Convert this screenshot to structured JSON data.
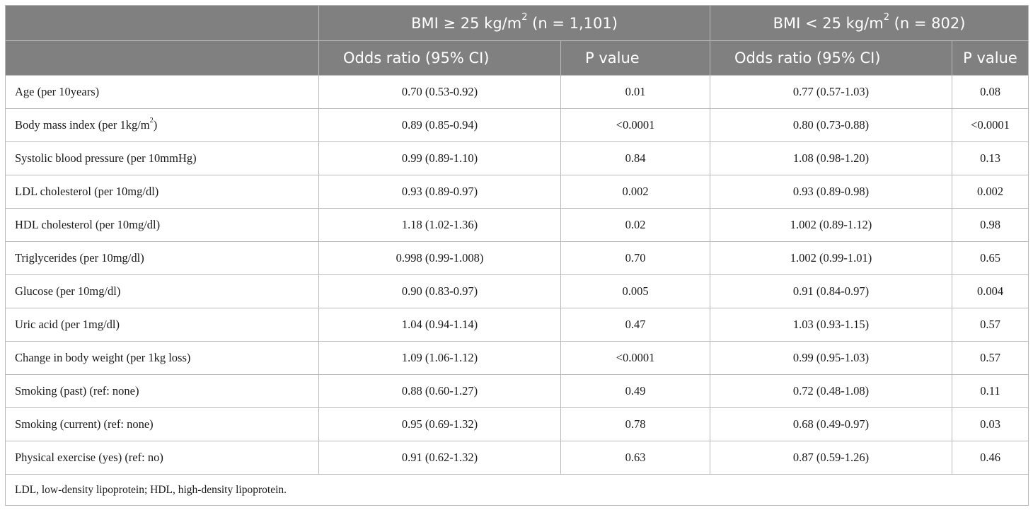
{
  "header": {
    "group1": {
      "prefix": "BMI ≥ 25 kg/m",
      "sup": "2",
      "suffix": " (n = 1,101)"
    },
    "group2": {
      "prefix": "BMI < 25 kg/m",
      "sup": "2",
      "suffix": " (n = 802)"
    },
    "col_or": "Odds ratio (95% CI)",
    "col_p": "P value"
  },
  "rows": [
    {
      "label": "Age (per 10years)",
      "or1": "0.70 (0.53-0.92)",
      "p1": "0.01",
      "or2": "0.77 (0.57-1.03)",
      "p2": "0.08"
    },
    {
      "label": "Body mass index (per 1kg/m",
      "label_sup": "2",
      "label_tail": ")",
      "or1": "0.89 (0.85-0.94)",
      "p1": "<0.0001",
      "or2": "0.80 (0.73-0.88)",
      "p2": "<0.0001"
    },
    {
      "label": "Systolic blood pressure (per 10mmHg)",
      "or1": "0.99 (0.89-1.10)",
      "p1": "0.84",
      "or2": "1.08 (0.98-1.20)",
      "p2": "0.13"
    },
    {
      "label": "LDL cholesterol (per 10mg/dl)",
      "or1": "0.93 (0.89-0.97)",
      "p1": "0.002",
      "or2": "0.93 (0.89-0.98)",
      "p2": "0.002"
    },
    {
      "label": "HDL cholesterol (per 10mg/dl)",
      "or1": "1.18 (1.02-1.36)",
      "p1": "0.02",
      "or2": "1.002 (0.89-1.12)",
      "p2": "0.98"
    },
    {
      "label": "Triglycerides (per 10mg/dl)",
      "or1": "0.998 (0.99-1.008)",
      "p1": "0.70",
      "or2": "1.002 (0.99-1.01)",
      "p2": "0.65"
    },
    {
      "label": "Glucose (per 10mg/dl)",
      "or1": "0.90 (0.83-0.97)",
      "p1": "0.005",
      "or2": "0.91 (0.84-0.97)",
      "p2": "0.004"
    },
    {
      "label": "Uric acid (per 1mg/dl)",
      "or1": "1.04 (0.94-1.14)",
      "p1": "0.47",
      "or2": "1.03 (0.93-1.15)",
      "p2": "0.57"
    },
    {
      "label": "Change in body weight (per 1kg loss)",
      "or1": "1.09 (1.06-1.12)",
      "p1": "<0.0001",
      "or2": "0.99 (0.95-1.03)",
      "p2": "0.57"
    },
    {
      "label": "Smoking (past) (ref: none)",
      "or1": "0.88 (0.60-1.27)",
      "p1": "0.49",
      "or2": "0.72 (0.48-1.08)",
      "p2": "0.11"
    },
    {
      "label": "Smoking (current) (ref: none)",
      "or1": "0.95 (0.69-1.32)",
      "p1": "0.78",
      "or2": "0.68 (0.49-0.97)",
      "p2": "0.03"
    },
    {
      "label": "Physical exercise (yes) (ref: no)",
      "or1": "0.91 (0.62-1.32)",
      "p1": "0.63",
      "or2": "0.87 (0.59-1.26)",
      "p2": "0.46"
    }
  ],
  "footnote": "LDL, low-density lipoprotein; HDL, high-density lipoprotein.",
  "colors": {
    "header_bg": "#808080",
    "header_text": "#ffffff",
    "border": "#b9b9b9"
  }
}
